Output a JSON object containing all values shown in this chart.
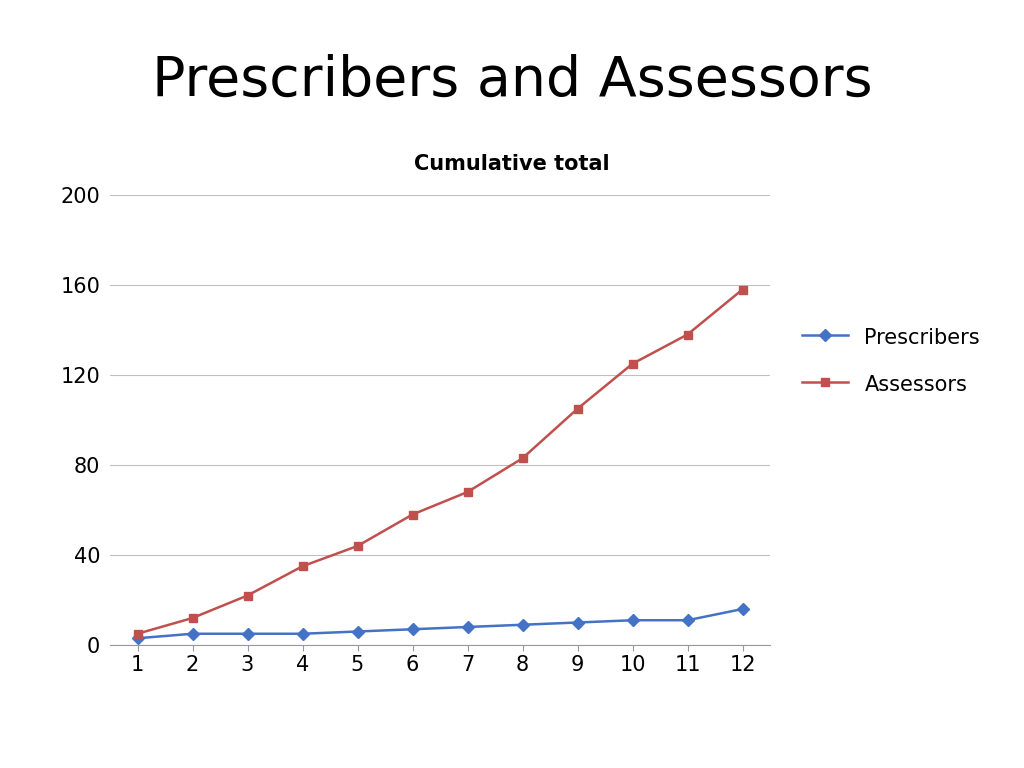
{
  "title": "Prescribers and Assessors",
  "subtitle": "Cumulative total",
  "x": [
    1,
    2,
    3,
    4,
    5,
    6,
    7,
    8,
    9,
    10,
    11,
    12
  ],
  "prescribers": [
    3,
    5,
    5,
    5,
    6,
    7,
    8,
    9,
    10,
    11,
    11,
    16
  ],
  "assessors": [
    5,
    12,
    22,
    35,
    44,
    58,
    68,
    83,
    105,
    125,
    138,
    158
  ],
  "prescribers_color": "#4472C4",
  "assessors_color": "#C0504D",
  "prescribers_label": "Prescribers",
  "assessors_label": "Assessors",
  "ylim": [
    0,
    200
  ],
  "yticks": [
    0,
    40,
    80,
    120,
    160,
    200
  ],
  "xlim": [
    0.5,
    12.5
  ],
  "xticks": [
    1,
    2,
    3,
    4,
    5,
    6,
    7,
    8,
    9,
    10,
    11,
    12
  ],
  "title_fontsize": 40,
  "subtitle_fontsize": 15,
  "tick_fontsize": 15,
  "legend_fontsize": 15,
  "background_color": "#ffffff",
  "grid_color": "#c0c0c0",
  "marker_size": 6,
  "line_width": 1.8
}
